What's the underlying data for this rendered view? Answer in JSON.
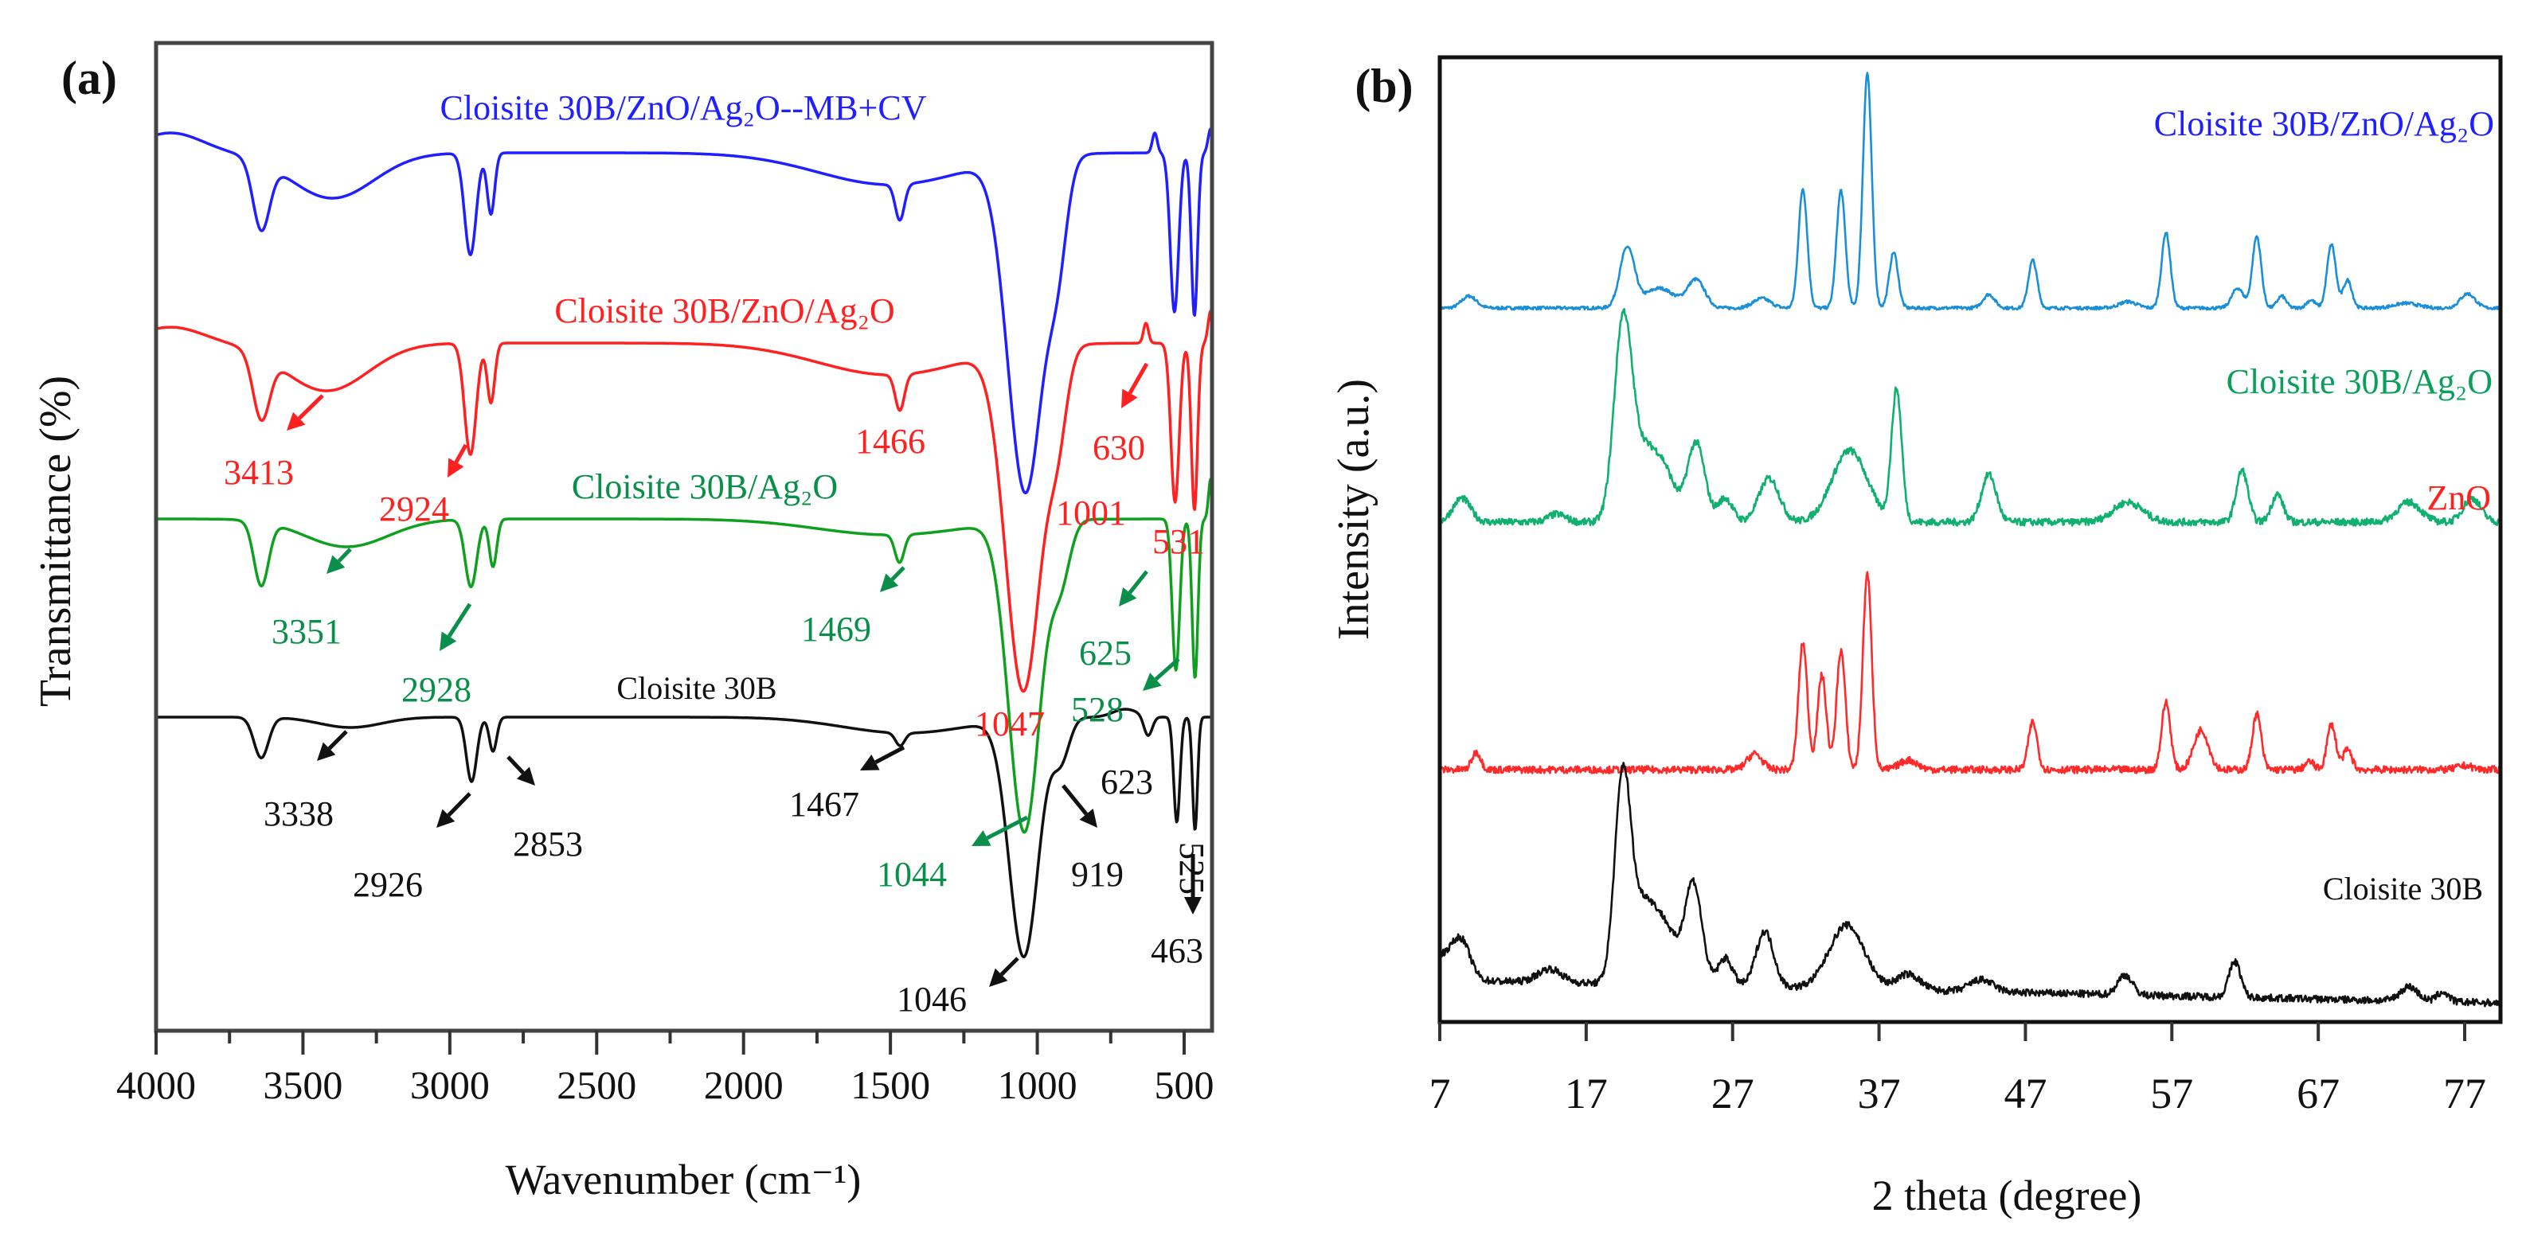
{
  "chart_data": [
    {
      "panel": "(a)",
      "type": "line",
      "xlabel": "Wavenumber (cm⁻¹)",
      "ylabel": "Transmittance (%)",
      "xlim": [
        4000,
        405
      ],
      "ylim": [
        0,
        1241
      ],
      "xticks": [
        "4000",
        "3500",
        "3000",
        "2500",
        "2000",
        "1500",
        "1000",
        "500"
      ],
      "xtick_values": [
        4000,
        3500,
        3000,
        2500,
        2000,
        1500,
        1000,
        500
      ],
      "series": [
        {
          "name": "Cloisite 30B/ZnO/Ag₂O--MB+CV",
          "color": "#1f1fff",
          "baseline": 1103,
          "bands": [
            [
              3950,
              -25,
              150
            ],
            [
              3642,
              85,
              40
            ],
            [
              3400,
              57,
              200
            ],
            [
              2930,
              128,
              28
            ],
            [
              2860,
              77,
              18
            ],
            [
              1500,
              40,
              350
            ],
            [
              1468,
              45,
              22
            ],
            [
              1040,
              420,
              85
            ],
            [
              930,
              100,
              45
            ],
            [
              600,
              -25,
              12
            ],
            [
              533,
              200,
              20
            ],
            [
              465,
              205,
              15
            ],
            [
              410,
              -30,
              12
            ]
          ]
        },
        {
          "name": "Cloisite 30B/ZnO/Ag₂O",
          "color": "#ff2020",
          "baseline": 864,
          "bands": [
            [
              3950,
              -20,
              150
            ],
            [
              3642,
              80,
              40
            ],
            [
              3420,
              60,
              200
            ],
            [
              2930,
              140,
              28
            ],
            [
              2860,
              75,
              18
            ],
            [
              1500,
              40,
              350
            ],
            [
              1468,
              45,
              22
            ],
            [
              1047,
              430,
              85
            ],
            [
              930,
              90,
              45
            ],
            [
              630,
              -25,
              12
            ],
            [
              531,
              200,
              20
            ],
            [
              465,
              210,
              15
            ],
            [
              410,
              -40,
              12
            ]
          ]
        },
        {
          "name": "Cloisite 30B/Ag₂O",
          "color": "#10a020",
          "baseline": 643,
          "bands": [
            [
              3642,
              80,
              35
            ],
            [
              3351,
              35,
              200
            ],
            [
              2928,
              85,
              28
            ],
            [
              2853,
              60,
              18
            ],
            [
              1500,
              20,
              350
            ],
            [
              1469,
              35,
              22
            ],
            [
              1044,
              390,
              75
            ],
            [
              920,
              70,
              45
            ],
            [
              528,
              190,
              18
            ],
            [
              463,
              200,
              14
            ],
            [
              410,
              -50,
              10
            ]
          ]
        },
        {
          "name": "Cloisite 30B",
          "color": "#111111",
          "baseline": 394,
          "bands": [
            [
              3642,
              51,
              35
            ],
            [
              3338,
              13,
              150
            ],
            [
              2926,
              81,
              25
            ],
            [
              2853,
              43,
              18
            ],
            [
              1450,
              20,
              300
            ],
            [
              1467,
              16,
              22
            ],
            [
              1046,
              298,
              70
            ],
            [
              919,
              50,
              40
            ],
            [
              700,
              -10,
              60
            ],
            [
              623,
              25,
              20
            ],
            [
              525,
              132,
              15
            ],
            [
              463,
              142,
              12
            ]
          ]
        }
      ],
      "annotations": [
        {
          "text": "3413",
          "color": "#ff2020"
        },
        {
          "text": "2924",
          "color": "#ff2020"
        },
        {
          "text": "1466",
          "color": "#ff2020"
        },
        {
          "text": "630",
          "color": "#ff2020"
        },
        {
          "text": "1001",
          "color": "#ff2020"
        },
        {
          "text": "531",
          "color": "#ff2020"
        },
        {
          "text": "1047",
          "color": "#ff2020"
        },
        {
          "text": "3351",
          "color": "#0a8f4a"
        },
        {
          "text": "2928",
          "color": "#0a8f4a"
        },
        {
          "text": "1469",
          "color": "#0a8f4a"
        },
        {
          "text": "625",
          "color": "#0a8f4a"
        },
        {
          "text": "528",
          "color": "#0a8f4a"
        },
        {
          "text": "1044",
          "color": "#0a8f4a"
        },
        {
          "text": "3338",
          "color": "#111111"
        },
        {
          "text": "2926",
          "color": "#111111"
        },
        {
          "text": "2853",
          "color": "#111111"
        },
        {
          "text": "1467",
          "color": "#111111"
        },
        {
          "text": "919",
          "color": "#111111"
        },
        {
          "text": "623",
          "color": "#111111"
        },
        {
          "text": "525",
          "color": "#111111"
        },
        {
          "text": "463",
          "color": "#111111"
        },
        {
          "text": "1046",
          "color": "#111111"
        }
      ]
    },
    {
      "panel": "(b)",
      "type": "line",
      "xlabel": "2 theta (degree)",
      "ylabel": "Intensity (a.u.)",
      "xlim": [
        7,
        79.4
      ],
      "ylim": [
        0,
        1212
      ],
      "xticks": [
        "7",
        "17",
        "27",
        "37",
        "47",
        "57",
        "67",
        "77"
      ],
      "xtick_values": [
        7,
        17,
        27,
        37,
        47,
        57,
        67,
        77
      ],
      "series": [
        {
          "name": "Cloisite 30B/ZnO/Ag₂O",
          "color": "#1a8fd8",
          "baseline": 897,
          "peaks": [
            [
              9,
              15,
              0.5
            ],
            [
              19.8,
              75,
              0.5
            ],
            [
              22,
              25,
              1
            ],
            [
              24.5,
              35,
              0.6
            ],
            [
              29,
              12,
              0.6
            ],
            [
              31.8,
              150,
              0.3
            ],
            [
              34.4,
              148,
              0.3
            ],
            [
              36.2,
              295,
              0.3
            ],
            [
              38,
              70,
              0.3
            ],
            [
              44.5,
              17,
              0.4
            ],
            [
              47.5,
              60,
              0.3
            ],
            [
              54,
              8,
              0.6
            ],
            [
              56.6,
              95,
              0.3
            ],
            [
              61.5,
              25,
              0.4
            ],
            [
              62.8,
              90,
              0.3
            ],
            [
              64.5,
              15,
              0.3
            ],
            [
              66.5,
              10,
              0.3
            ],
            [
              67.9,
              80,
              0.3
            ],
            [
              69,
              35,
              0.3
            ],
            [
              73,
              6,
              0.8
            ],
            [
              77.2,
              18,
              0.5
            ]
          ]
        },
        {
          "name": "Cloisite 30B/Ag₂O",
          "color": "#10b070",
          "baseline": 628,
          "peaks": [
            [
              8.5,
              30,
              0.6
            ],
            [
              15,
              10,
              0.6
            ],
            [
              19.5,
              235,
              0.6
            ],
            [
              21,
              90,
              1
            ],
            [
              22.5,
              40,
              0.7
            ],
            [
              24.5,
              100,
              0.6
            ],
            [
              26.5,
              30,
              0.5
            ],
            [
              29.5,
              55,
              0.7
            ],
            [
              35,
              90,
              1.2
            ],
            [
              38.2,
              165,
              0.35
            ],
            [
              44.5,
              60,
              0.5
            ],
            [
              54,
              25,
              1
            ],
            [
              61.8,
              65,
              0.4
            ],
            [
              64.2,
              35,
              0.4
            ],
            [
              73.2,
              25,
              0.8
            ],
            [
              77.5,
              30,
              0.6
            ]
          ]
        },
        {
          "name": "ZnO",
          "color": "#ff2a2a",
          "baseline": 317,
          "peaks": [
            [
              9.5,
              22,
              0.3
            ],
            [
              28.5,
              20,
              0.5
            ],
            [
              31.8,
              160,
              0.3
            ],
            [
              33.1,
              119,
              0.3
            ],
            [
              34.4,
              150,
              0.3
            ],
            [
              36.2,
              246,
              0.3
            ],
            [
              39,
              12,
              0.6
            ],
            [
              47.5,
              60,
              0.3
            ],
            [
              56.6,
              85,
              0.3
            ],
            [
              59,
              50,
              0.5
            ],
            [
              62.8,
              70,
              0.3
            ],
            [
              66.4,
              10,
              0.3
            ],
            [
              67.9,
              57,
              0.3
            ],
            [
              69,
              25,
              0.3
            ],
            [
              77,
              5,
              0.5
            ]
          ]
        },
        {
          "name": "Cloisite 30B",
          "color": "#111111",
          "baseline": 24,
          "peaks": [
            [
              7.2,
              30,
              1
            ],
            [
              8.5,
              40,
              0.6
            ],
            [
              14.5,
              17,
              0.8
            ],
            [
              19.5,
              258,
              0.55
            ],
            [
              21,
              100,
              0.8
            ],
            [
              22.5,
              60,
              0.7
            ],
            [
              24.3,
              130,
              0.6
            ],
            [
              26.5,
              35,
              0.5
            ],
            [
              29.2,
              70,
              0.6
            ],
            [
              34.8,
              80,
              1.2
            ],
            [
              39,
              20,
              0.8
            ],
            [
              44,
              15,
              0.8
            ],
            [
              53.8,
              25,
              0.5
            ],
            [
              61.3,
              45,
              0.4
            ],
            [
              73.2,
              18,
              0.6
            ],
            [
              75.5,
              12,
              0.4
            ]
          ]
        }
      ]
    }
  ]
}
